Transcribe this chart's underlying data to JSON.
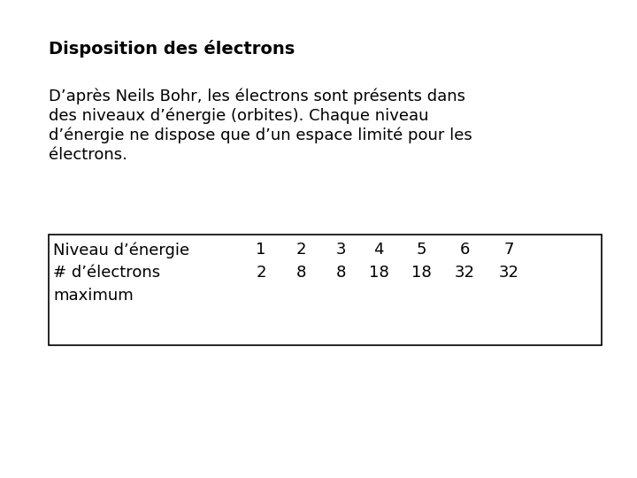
{
  "title": "Disposition des électrons",
  "paragraph_lines": [
    "D’après Neils Bohr, les électrons sont présents dans",
    "des niveaux d’énergie (orbites). Chaque niveau",
    "d’énergie ne dispose que d’un espace limité pour les",
    "électrons."
  ],
  "table_row1_label": "Niveau d’énergie",
  "table_row2_label": "# d’électrons",
  "table_row3_label": "maximum",
  "table_row1_values": [
    "1",
    "2",
    "3",
    "4",
    "5",
    "6",
    "7"
  ],
  "table_row2_values": [
    "2",
    "8",
    "8",
    "18",
    "18",
    "32",
    "32"
  ],
  "background_color": "#ffffff",
  "text_color": "#000000",
  "title_fontsize": 14,
  "body_fontsize": 13,
  "table_fontsize": 13
}
